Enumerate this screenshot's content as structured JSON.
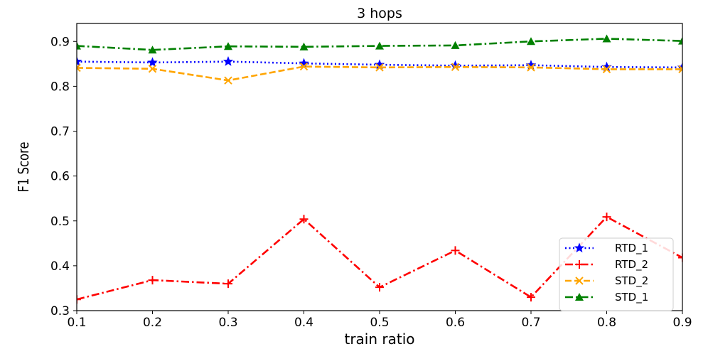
{
  "chart_data": {
    "type": "line",
    "title": "3 hops",
    "xlabel": "train ratio",
    "ylabel": "F1 Score",
    "xlim": [
      0.1,
      0.9
    ],
    "ylim": [
      0.3,
      0.94
    ],
    "x": [
      0.1,
      0.2,
      0.3,
      0.4,
      0.5,
      0.6,
      0.7,
      0.8,
      0.9
    ],
    "xticks": [
      "0.1",
      "0.2",
      "0.3",
      "0.4",
      "0.5",
      "0.6",
      "0.7",
      "0.8",
      "0.9"
    ],
    "yticks": [
      "0.3",
      "0.4",
      "0.5",
      "0.6",
      "0.7",
      "0.8",
      "0.9"
    ],
    "grid": false,
    "legend_position": "lower-right",
    "series": [
      {
        "name": "RTD_1",
        "color": "#0000ff",
        "marker": "star",
        "style": "dotted",
        "values": [
          0.855,
          0.853,
          0.855,
          0.851,
          0.848,
          0.846,
          0.847,
          0.843,
          0.842
        ]
      },
      {
        "name": "RTD_2",
        "color": "#ff0000",
        "marker": "plus",
        "style": "dashdot",
        "values": [
          0.325,
          0.368,
          0.36,
          0.504,
          0.352,
          0.434,
          0.33,
          0.509,
          0.418
        ]
      },
      {
        "name": "STD_2",
        "color": "#ffa500",
        "marker": "x",
        "style": "dashed",
        "values": [
          0.841,
          0.839,
          0.813,
          0.844,
          0.842,
          0.843,
          0.842,
          0.838,
          0.838
        ]
      },
      {
        "name": "STD_1",
        "color": "#008000",
        "marker": "triangle",
        "style": "dashdot",
        "values": [
          0.89,
          0.881,
          0.889,
          0.888,
          0.89,
          0.891,
          0.9,
          0.906,
          0.901
        ]
      }
    ]
  }
}
